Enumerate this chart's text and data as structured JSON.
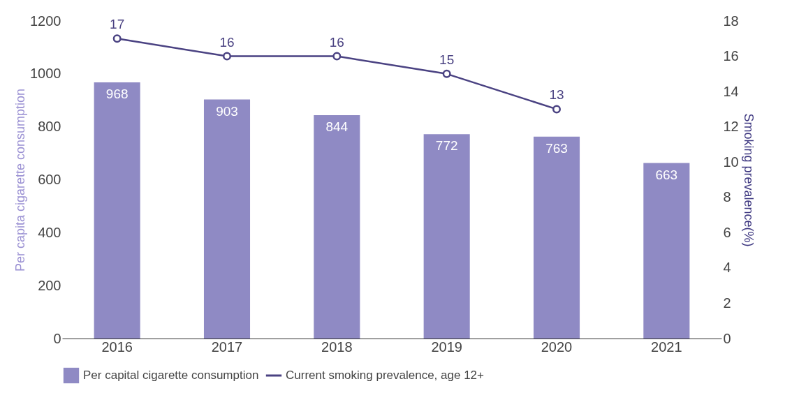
{
  "chart_data": {
    "type": "bar",
    "categories": [
      "2016",
      "2017",
      "2018",
      "2019",
      "2020",
      "2021"
    ],
    "ylabel": "Per capita cigarette consumption",
    "y2label": "Smoking prevalence(%)",
    "series": [
      {
        "name": "Per capital cigarette consumption",
        "color": "#8f8ac4",
        "values": [
          968,
          903,
          844,
          772,
          763,
          663
        ]
      },
      {
        "name": "Current smoking prevalence, age 12+",
        "type": "line",
        "axis": "y2",
        "color": "#4a4282",
        "values": [
          17,
          16,
          16,
          15,
          13,
          null
        ]
      }
    ],
    "ylim": [
      0,
      1200
    ],
    "yticks": [
      0,
      200,
      400,
      600,
      800,
      1000,
      1200
    ],
    "y2lim": [
      0,
      18
    ],
    "y2ticks": [
      0,
      2,
      4,
      6,
      8,
      10,
      12,
      14,
      16,
      18
    ],
    "data_labels": true,
    "legend": "bottom",
    "marker": "circle"
  }
}
